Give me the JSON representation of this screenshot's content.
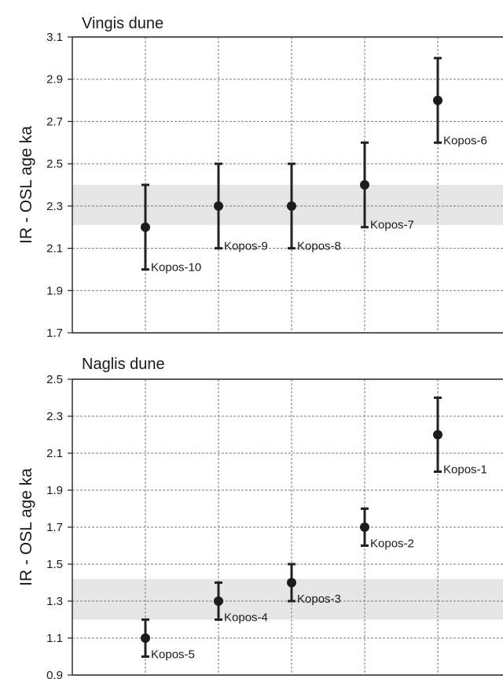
{
  "chart_data": [
    {
      "type": "scatter",
      "title": "Vingis dune",
      "ylabel": "IR - OSL age ka",
      "ylim": [
        1.7,
        3.1
      ],
      "yticks": [
        "1.7",
        "1.9",
        "2.1",
        "2.3",
        "2.5",
        "2.7",
        "2.9",
        "3.1"
      ],
      "band": [
        2.21,
        2.4
      ],
      "grid": "dashed",
      "points": [
        {
          "label": "Kopos-10",
          "x": 1,
          "y": 2.2,
          "err_low": 2.0,
          "err_high": 2.4
        },
        {
          "label": "Kopos-9",
          "x": 2,
          "y": 2.3,
          "err_low": 2.1,
          "err_high": 2.5
        },
        {
          "label": "Kopos-8",
          "x": 3,
          "y": 2.3,
          "err_low": 2.1,
          "err_high": 2.5
        },
        {
          "label": "Kopos-7",
          "x": 4,
          "y": 2.4,
          "err_low": 2.2,
          "err_high": 2.6
        },
        {
          "label": "Kopos-6",
          "x": 5,
          "y": 2.8,
          "err_low": 2.6,
          "err_high": 3.0
        }
      ]
    },
    {
      "type": "scatter",
      "title": "Naglis dune",
      "ylabel": "IR - OSL age ka",
      "ylim": [
        0.9,
        2.5
      ],
      "yticks": [
        "0.9",
        "1.1",
        "1.3",
        "1.5",
        "1.7",
        "1.9",
        "2.1",
        "2.3",
        "2.5"
      ],
      "band": [
        1.2,
        1.42
      ],
      "grid": "dashed",
      "points": [
        {
          "label": "Kopos-5",
          "x": 1,
          "y": 1.1,
          "err_low": 1.0,
          "err_high": 1.2
        },
        {
          "label": "Kopos-4",
          "x": 2,
          "y": 1.3,
          "err_low": 1.2,
          "err_high": 1.4
        },
        {
          "label": "Kopos-3",
          "x": 3,
          "y": 1.4,
          "err_low": 1.3,
          "err_high": 1.5
        },
        {
          "label": "Kopos-2",
          "x": 4,
          "y": 1.7,
          "err_low": 1.6,
          "err_high": 1.8
        },
        {
          "label": "Kopos-1",
          "x": 5,
          "y": 2.2,
          "err_low": 2.0,
          "err_high": 2.4
        }
      ]
    }
  ]
}
